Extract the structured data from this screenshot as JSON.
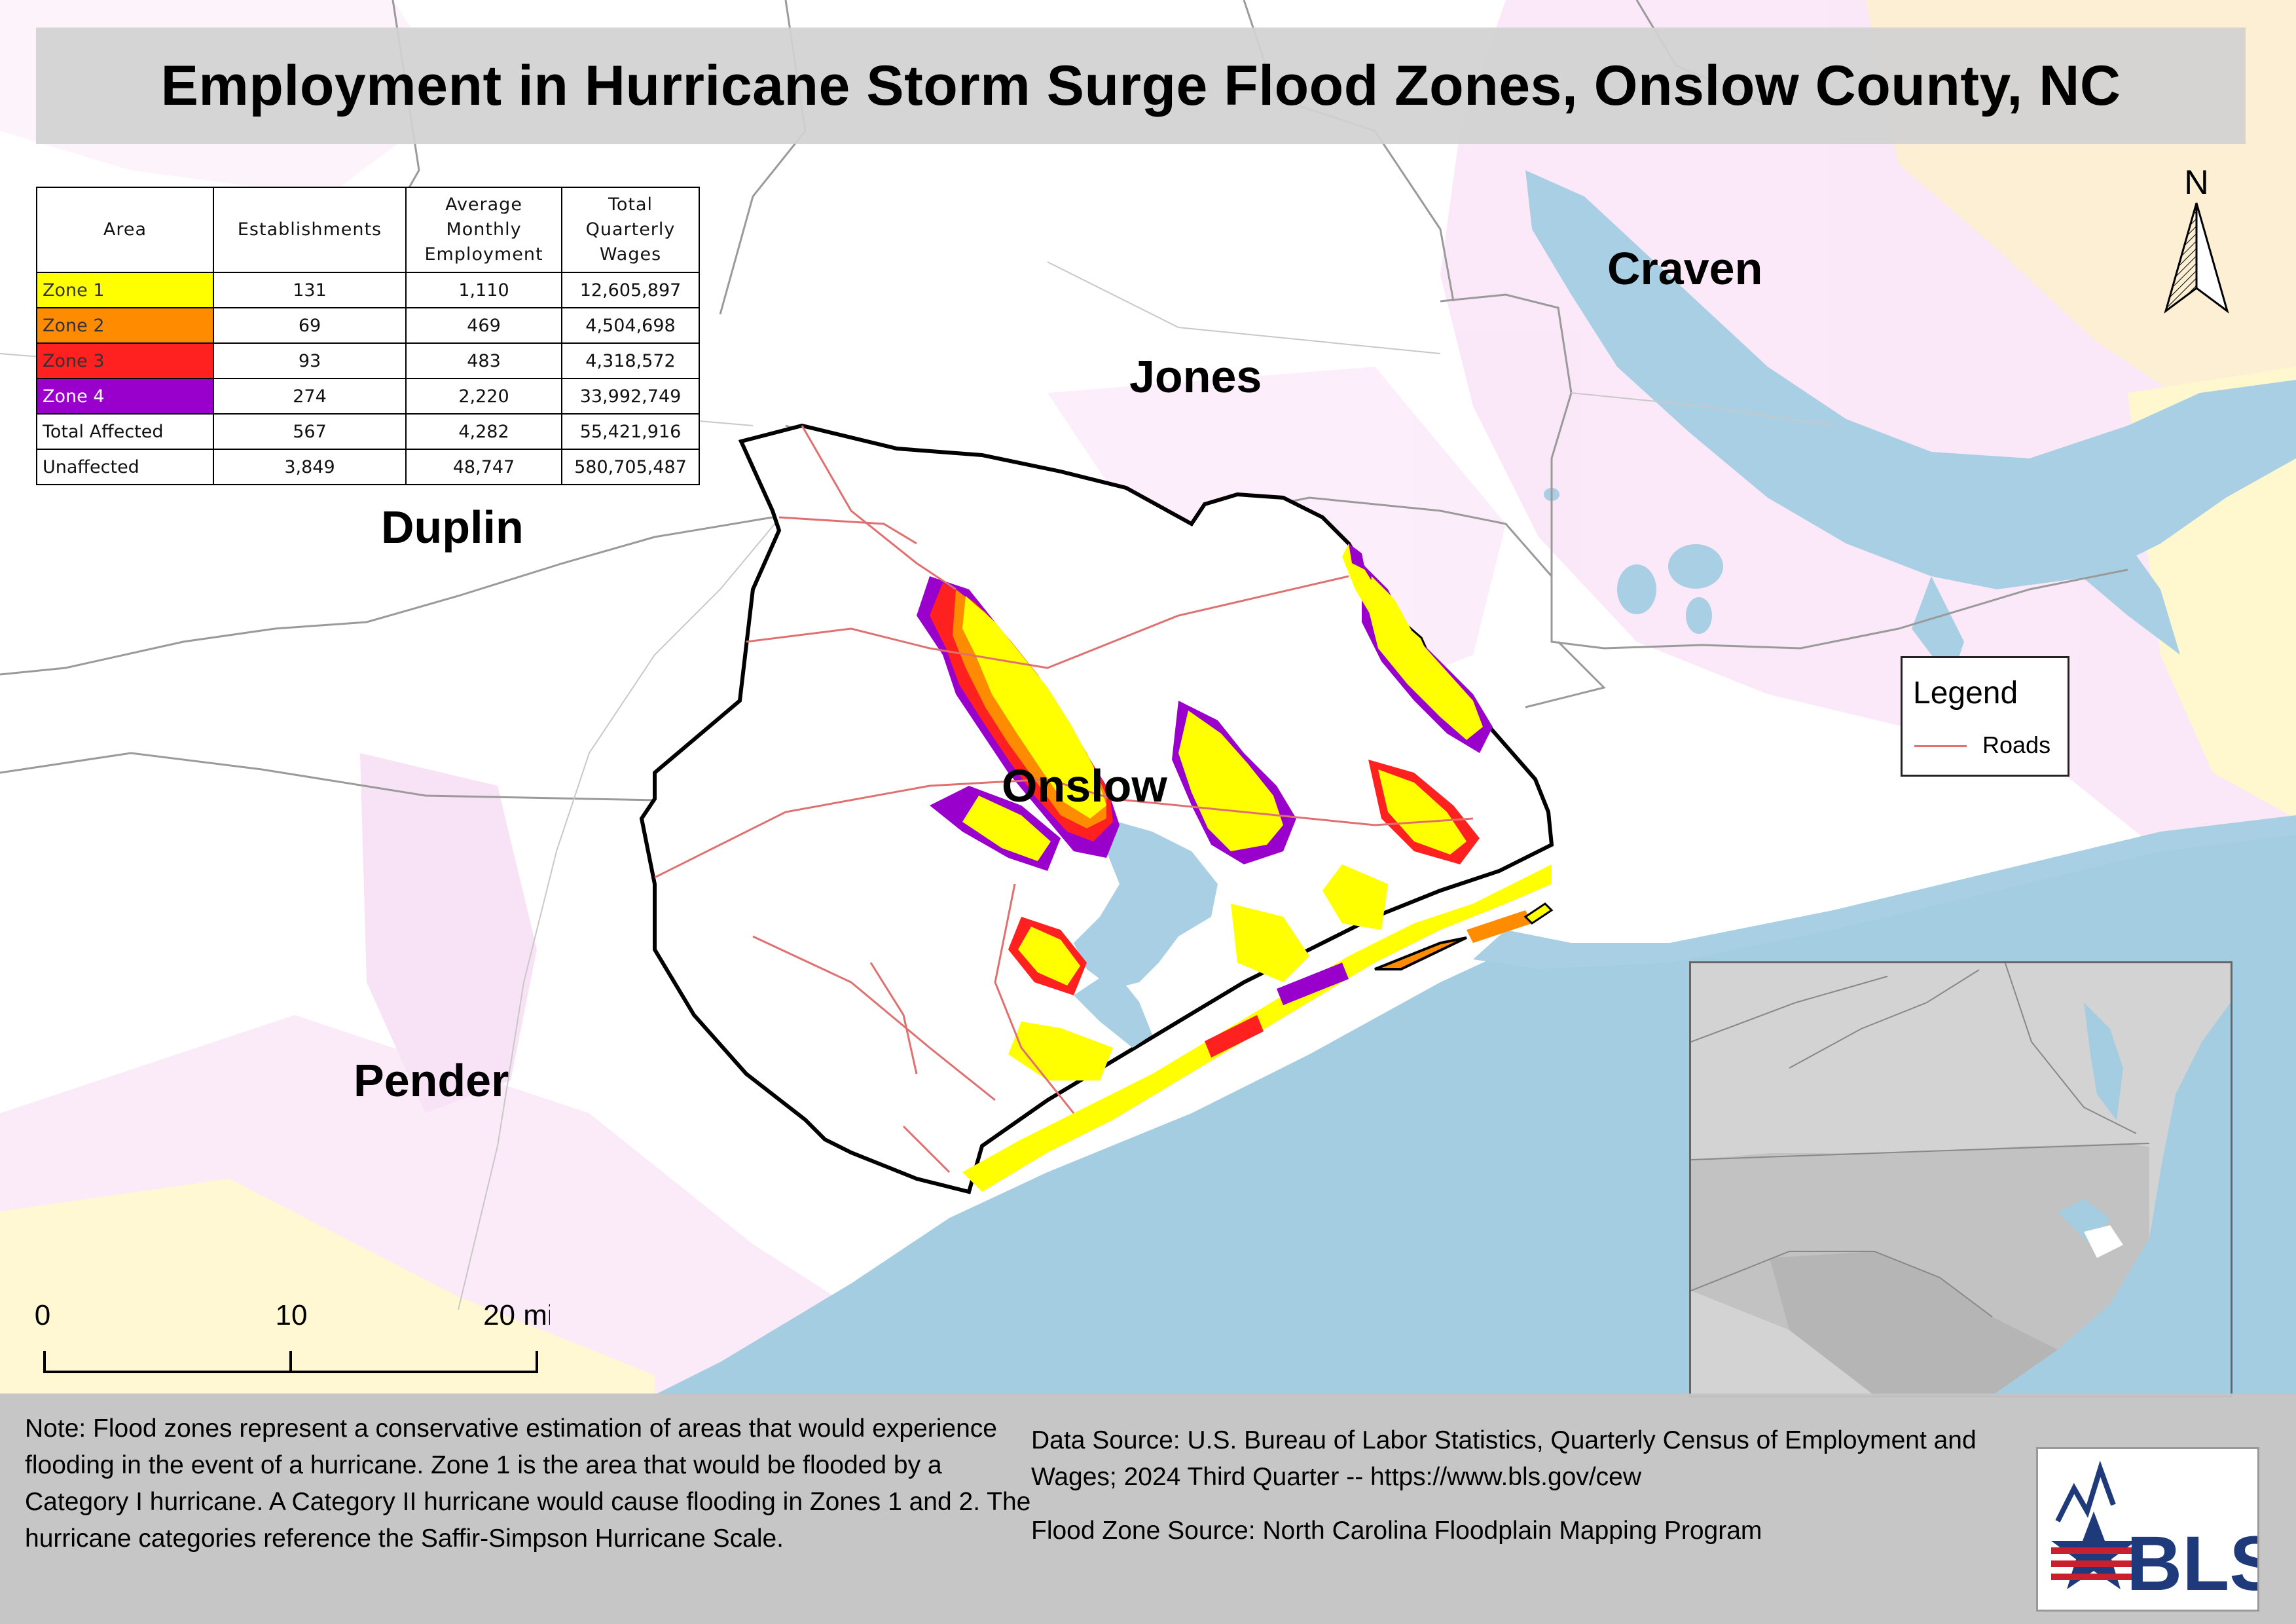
{
  "title": "Employment in Hurricane Storm Surge Flood Zones, Onslow County, NC",
  "table": {
    "headers": [
      "Area",
      "Establishments",
      "Average Monthly Employment",
      "Total Quarterly Wages"
    ],
    "rows": [
      {
        "area": "Zone 1",
        "color": "#ffff00",
        "text_color": "#333333",
        "establishments": "131",
        "employment": "1,110",
        "wages": "12,605,897"
      },
      {
        "area": "Zone 2",
        "color": "#ff8c00",
        "text_color": "#333333",
        "establishments": "69",
        "employment": "469",
        "wages": "4,504,698"
      },
      {
        "area": "Zone 3",
        "color": "#ff2020",
        "text_color": "#333333",
        "establishments": "93",
        "employment": "483",
        "wages": "4,318,572"
      },
      {
        "area": "Zone 4",
        "color": "#9a00cc",
        "text_color": "#ffffff",
        "establishments": "274",
        "employment": "2,220",
        "wages": "33,992,749"
      },
      {
        "area": "Total Affected",
        "color": "#ffffff",
        "text_color": "#111111",
        "establishments": "567",
        "employment": "4,282",
        "wages": "55,421,916"
      },
      {
        "area": "Unaffected",
        "color": "#ffffff",
        "text_color": "#111111",
        "establishments": "3,849",
        "employment": "48,747",
        "wages": "580,705,487"
      }
    ]
  },
  "county_labels": {
    "craven": "Craven",
    "jones": "Jones",
    "duplin": "Duplin",
    "onslow": "Onslow",
    "pender": "Pender"
  },
  "legend": {
    "title": "Legend",
    "roads_label": "Roads",
    "roads_color": "#e07070"
  },
  "north_arrow": {
    "label": "N"
  },
  "scale_bar": {
    "ticks": [
      "0",
      "10",
      "20 miles"
    ]
  },
  "note": "Note: Flood zones represent a conservative estimation of areas that would experience flooding in the event of a hurricane. Zone 1 is the area that would be flooded by a Category I hurricane. A Category II hurricane would cause flooding in Zones 1 and 2. The hurricane categories reference the Saffir-Simpson Hurricane Scale.",
  "data_source": "Data Source: U.S. Bureau of Labor Statistics, Quarterly Census of Employment and Wages; 2024 Third Quarter -- https://www.bls.gov/cew",
  "flood_zone_source": "Flood Zone Source: North Carolina Floodplain Mapping Program",
  "logo_text": "BLS",
  "colors": {
    "water": "#a8cfe3",
    "ocean": "#a4cde2",
    "zone1": "#ffff00",
    "zone2": "#ff8c00",
    "zone3": "#ff2020",
    "zone4": "#9a00cc",
    "floodplain_pink": "#f4c4f0"
  }
}
